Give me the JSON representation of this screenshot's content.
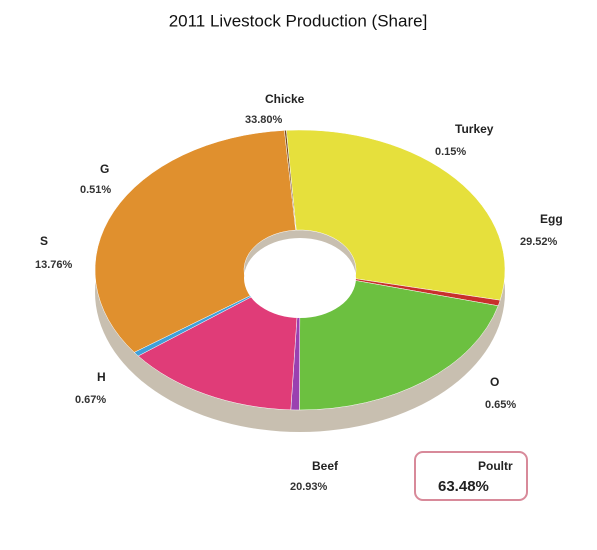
{
  "chart_data": {
    "type": "pie",
    "title": "2011 Livestock Production (Share]",
    "categories": [
      "Chicke",
      "Turkey",
      "Egg",
      "O",
      "Beef",
      "H",
      "S",
      "G"
    ],
    "values": [
      33.8,
      0.15,
      29.52,
      0.65,
      20.93,
      0.67,
      13.76,
      0.51
    ],
    "value_labels": [
      "33.80%",
      "0.15%",
      "29.52%",
      "0.65%",
      "20.93%",
      "0.67%",
      "13.76%",
      "0.51%"
    ],
    "colors": [
      "#e0902e",
      "#7a4a1e",
      "#e6e03c",
      "#c8302c",
      "#6cc040",
      "#9a40b0",
      "#e03c78",
      "#40a0d8"
    ],
    "annotation": {
      "label": "Poultr",
      "value_label": "63.48%"
    }
  }
}
